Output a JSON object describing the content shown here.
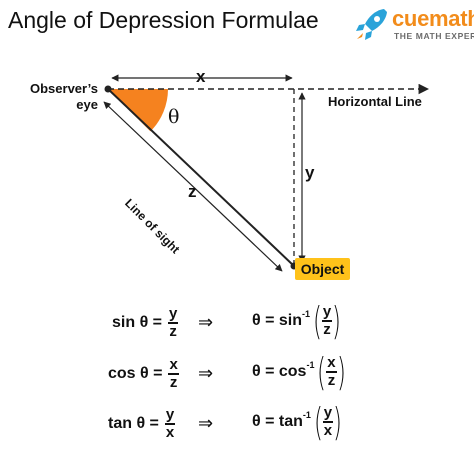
{
  "title": "Angle of Depression Formulae",
  "logo": {
    "brand": "cuemath",
    "tagline": "THE MATH EXPERT"
  },
  "colors": {
    "angle": "#f5821f",
    "object_box": "#ffc21a",
    "brand": "#f28c1b",
    "logo_icon": "#2aa3d9"
  },
  "diagram": {
    "observer_label_line1": "Observer’s",
    "observer_label_line2": "eye",
    "horizontal_label": "Horizontal Line",
    "line_of_sight_label": "Line of sight",
    "object_label": "Object",
    "x": "x",
    "y": "y",
    "z": "z",
    "theta": "θ"
  },
  "formulas": [
    {
      "fn": "sin θ =",
      "num": "y",
      "den": "z",
      "implies": "⇒",
      "inv": "θ = sin",
      "exp": "-1",
      "inum": "y",
      "iden": "z"
    },
    {
      "fn": "cos θ =",
      "num": "x",
      "den": "z",
      "implies": "⇒",
      "inv": "θ = cos",
      "exp": "-1",
      "inum": "x",
      "iden": "z"
    },
    {
      "fn": "tan θ =",
      "num": "y",
      "den": "x",
      "implies": "⇒",
      "inv": "θ = tan",
      "exp": "-1",
      "inum": "y",
      "iden": "x"
    }
  ]
}
